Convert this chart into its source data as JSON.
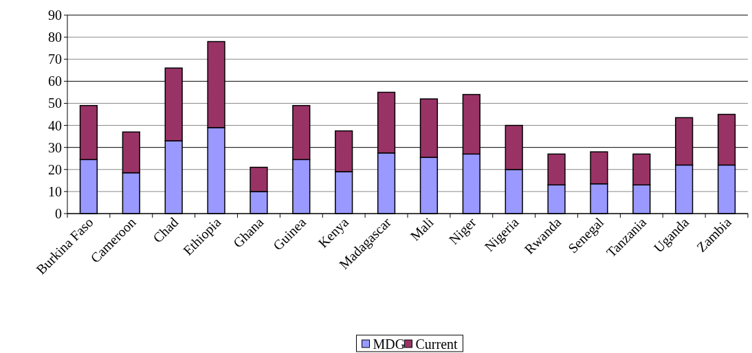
{
  "chart_data": {
    "type": "bar",
    "stacked": true,
    "categories": [
      "Burkina Faso",
      "Cameroon",
      "Chad",
      "Ethiopia",
      "Ghana",
      "Guinea",
      "Kenya",
      "Madagascar",
      "Mali",
      "Niger",
      "Nigeria",
      "Rwanda",
      "Senegal",
      "Tanzania",
      "Uganda",
      "Zambia"
    ],
    "series": [
      {
        "name": "MDG",
        "color": "#9999ff",
        "values": [
          24.5,
          18.5,
          33,
          39,
          10,
          24.5,
          19,
          27.5,
          25.5,
          27,
          20,
          13,
          13.5,
          13,
          22,
          22
        ]
      },
      {
        "name": "Current",
        "color": "#993366",
        "values": [
          24.5,
          18.5,
          33,
          39,
          11,
          24.5,
          18.5,
          27.5,
          26.5,
          27,
          20,
          14,
          14.5,
          14,
          21.5,
          23
        ]
      }
    ],
    "ylim": [
      0,
      90
    ],
    "yticks": [
      0,
      10,
      20,
      30,
      40,
      50,
      60,
      70,
      80,
      90
    ],
    "grid": "y",
    "legend": "bottom"
  }
}
